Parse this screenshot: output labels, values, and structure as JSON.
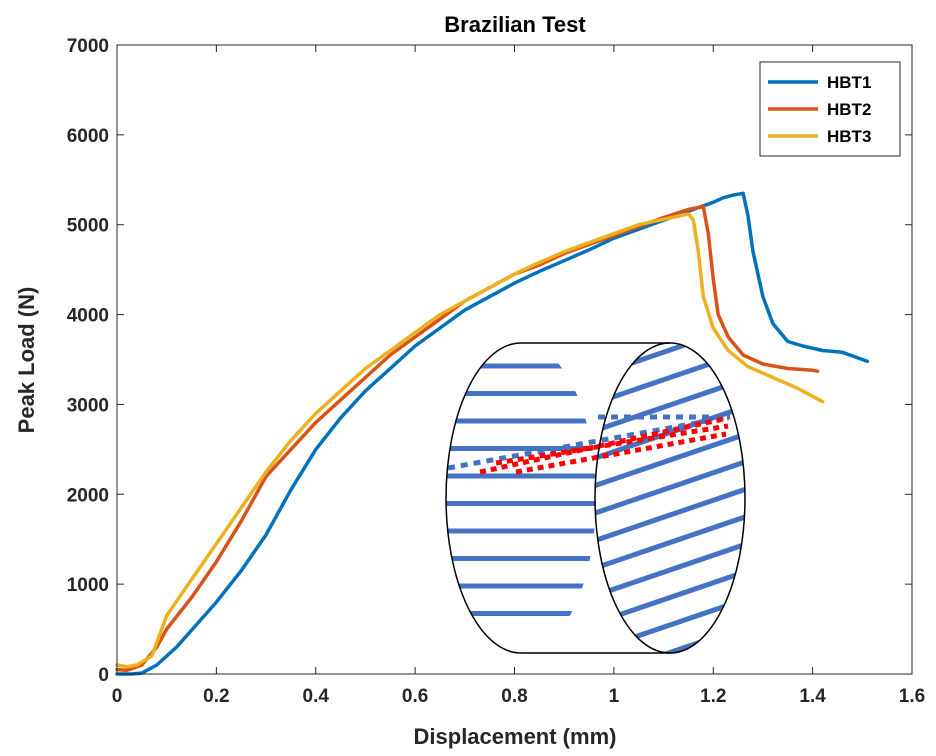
{
  "chart_data": {
    "type": "line",
    "title": "Brazilian Test",
    "xlabel": "Displacement (mm)",
    "ylabel": "Peak Load (N)",
    "xlim": [
      0,
      1.6
    ],
    "ylim": [
      0,
      7000
    ],
    "xticks": [
      0,
      0.2,
      0.4,
      0.6,
      0.8,
      1,
      1.2,
      1.4,
      1.6
    ],
    "xtick_labels": [
      "0",
      "0.2",
      "0.4",
      "0.6",
      "0.8",
      "1",
      "1.2",
      "1.4",
      "1.6"
    ],
    "yticks": [
      0,
      1000,
      2000,
      3000,
      4000,
      5000,
      6000,
      7000
    ],
    "ytick_labels": [
      "0",
      "1000",
      "2000",
      "3000",
      "4000",
      "5000",
      "6000",
      "7000"
    ],
    "grid": false,
    "legend_position": "top-right",
    "series": [
      {
        "name": "HBT1",
        "color": "#0072BD",
        "x": [
          0.0,
          0.03,
          0.05,
          0.08,
          0.12,
          0.16,
          0.2,
          0.25,
          0.3,
          0.35,
          0.4,
          0.45,
          0.5,
          0.55,
          0.6,
          0.65,
          0.7,
          0.75,
          0.8,
          0.85,
          0.9,
          0.95,
          1.0,
          1.05,
          1.1,
          1.15,
          1.2,
          1.22,
          1.24,
          1.26,
          1.27,
          1.28,
          1.3,
          1.32,
          1.35,
          1.38,
          1.42,
          1.46,
          1.5,
          1.51
        ],
        "y": [
          0,
          0,
          10,
          100,
          300,
          550,
          800,
          1150,
          1550,
          2050,
          2500,
          2850,
          3150,
          3400,
          3650,
          3850,
          4050,
          4200,
          4350,
          4480,
          4600,
          4720,
          4850,
          4950,
          5050,
          5150,
          5250,
          5300,
          5330,
          5350,
          5100,
          4700,
          4200,
          3900,
          3700,
          3650,
          3600,
          3580,
          3500,
          3480
        ]
      },
      {
        "name": "HBT2",
        "color": "#D95319",
        "x": [
          0.0,
          0.02,
          0.05,
          0.08,
          0.1,
          0.15,
          0.2,
          0.25,
          0.3,
          0.35,
          0.4,
          0.45,
          0.5,
          0.55,
          0.6,
          0.65,
          0.7,
          0.75,
          0.8,
          0.85,
          0.9,
          0.95,
          1.0,
          1.05,
          1.1,
          1.15,
          1.18,
          1.19,
          1.2,
          1.21,
          1.23,
          1.26,
          1.3,
          1.35,
          1.4,
          1.41
        ],
        "y": [
          50,
          40,
          100,
          300,
          500,
          850,
          1250,
          1700,
          2200,
          2500,
          2800,
          3050,
          3300,
          3550,
          3750,
          3950,
          4150,
          4300,
          4450,
          4550,
          4680,
          4780,
          4880,
          4980,
          5080,
          5170,
          5200,
          4900,
          4400,
          4000,
          3750,
          3550,
          3450,
          3400,
          3380,
          3370
        ]
      },
      {
        "name": "HBT3",
        "color": "#EDB120",
        "x": [
          0.0,
          0.02,
          0.04,
          0.07,
          0.1,
          0.15,
          0.2,
          0.25,
          0.3,
          0.35,
          0.4,
          0.45,
          0.5,
          0.55,
          0.6,
          0.65,
          0.7,
          0.75,
          0.8,
          0.85,
          0.9,
          0.95,
          1.0,
          1.05,
          1.1,
          1.15,
          1.16,
          1.17,
          1.18,
          1.2,
          1.23,
          1.27,
          1.32,
          1.37,
          1.42
        ],
        "y": [
          100,
          80,
          100,
          200,
          650,
          1050,
          1450,
          1850,
          2250,
          2600,
          2900,
          3150,
          3400,
          3600,
          3800,
          4000,
          4150,
          4300,
          4450,
          4580,
          4700,
          4800,
          4900,
          5000,
          5060,
          5120,
          5050,
          4700,
          4200,
          3850,
          3600,
          3420,
          3300,
          3180,
          3030
        ]
      }
    ]
  }
}
